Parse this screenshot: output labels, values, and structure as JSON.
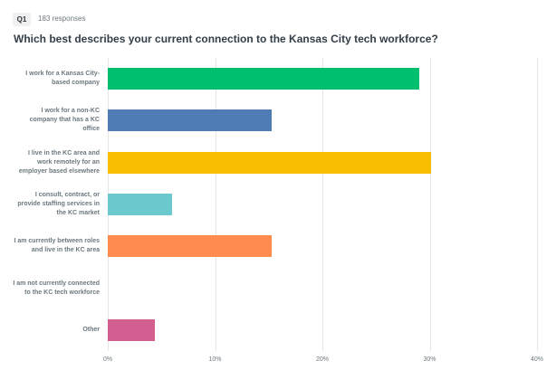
{
  "header": {
    "badge": "Q1",
    "responses": "183 responses"
  },
  "chart_data": {
    "type": "hbar",
    "title": "Which best describes your current connection to the Kansas City tech workforce?",
    "categories": [
      "I work for a Kansas City-based company",
      "I work for a non-KC company that has a KC office",
      "I live in the KC area and work remotely for an employer based elsewhere",
      "I consult, contract, or provide staffing services in the KC market",
      "I am currently between roles and live in the KC area",
      "I am not currently connected to the KC tech workforce",
      "Other"
    ],
    "values": [
      29,
      15.3,
      30.1,
      6,
      15.3,
      0,
      4.4
    ],
    "colors": [
      "#00bf6f",
      "#507cb6",
      "#f9be00",
      "#6bc8cd",
      "#ff8b4f",
      "#a0a0a0",
      "#d25f90"
    ],
    "xlim": [
      0,
      40
    ],
    "xticks": [
      {
        "value": 0,
        "label": "0%"
      },
      {
        "value": 10,
        "label": "10%"
      },
      {
        "value": 20,
        "label": "20%"
      },
      {
        "value": 30,
        "label": "30%"
      },
      {
        "value": 40,
        "label": "40%"
      }
    ],
    "grid": true
  }
}
